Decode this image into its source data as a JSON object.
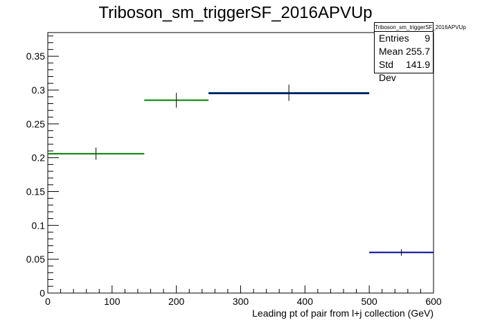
{
  "chart_data": {
    "type": "histogram",
    "title": "Triboson_sm_triggerSF_2016APVUp",
    "xlabel": "Leading pt of pair from l+j collection (GeV)",
    "ylabel": "",
    "xlim": [
      0,
      600
    ],
    "ylim": [
      0,
      0.385
    ],
    "x_ticks": [
      0,
      100,
      200,
      300,
      400,
      500,
      600
    ],
    "x_tick_labels": [
      "0",
      "100",
      "200",
      "300",
      "400",
      "500",
      "600"
    ],
    "y_ticks": [
      0,
      0.05,
      0.1,
      0.15,
      0.2,
      0.25,
      0.3,
      0.35
    ],
    "y_tick_labels": [
      "0",
      "0.05",
      "0.1",
      "0.15",
      "0.2",
      "0.25",
      "0.3",
      "0.35"
    ],
    "grid": false,
    "series": [
      {
        "color": "#008000",
        "bins": [
          {
            "low": 0,
            "high": 150,
            "center": 75,
            "value": 0.206,
            "err": 0.009
          },
          {
            "low": 150,
            "high": 250,
            "center": 200,
            "value": 0.285,
            "err": 0.011
          },
          {
            "low": 250,
            "high": 500,
            "center": 375,
            "value": 0.296,
            "err": 0.012
          }
        ]
      },
      {
        "color": "#000099",
        "bins": [
          {
            "low": 250,
            "high": 500,
            "center": 375,
            "value": 0.295,
            "err": 0.0
          },
          {
            "low": 500,
            "high": 600,
            "center": 550,
            "value": 0.06,
            "err": 0.005
          }
        ]
      }
    ]
  },
  "stats": {
    "title": "Triboson_sm_triggerSF_2016APVUp",
    "rows": [
      {
        "label": "Entries",
        "value": "9"
      },
      {
        "label": "Mean",
        "value": "255.7"
      },
      {
        "label": "Std Dev",
        "value": "141.9"
      }
    ]
  }
}
